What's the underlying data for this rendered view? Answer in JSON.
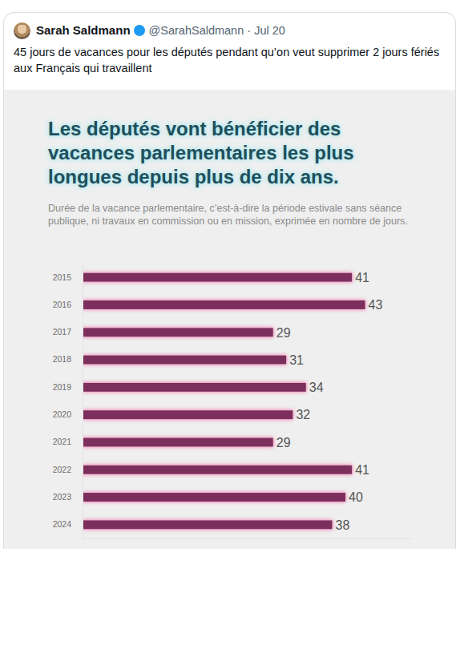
{
  "tweet": {
    "author": "Sarah Saldmann",
    "handle": "@SarahSaldmann · Jul 20",
    "text": "45 jours de vacances pour les députés pendant qu’on veut supprimer 2 jours fériés aux Français qui travaillent"
  },
  "chart_data": {
    "type": "bar",
    "orientation": "horizontal",
    "title": "Les députés vont bénéficier des vacances parlementaires les plus longues depuis plus de dix ans.",
    "subtitle": "Durée de la vacance parlementaire, c’est-à-dire la période estivale sans séance publique, ni travaux en commission ou en mission, exprimée en nombre de jours.",
    "categories": [
      "2015",
      "2016",
      "2017",
      "2018",
      "2019",
      "2020",
      "2021",
      "2022",
      "2023",
      "2024"
    ],
    "values": [
      41,
      43,
      29,
      31,
      34,
      32,
      29,
      41,
      40,
      38
    ],
    "color": "#7b2d5b",
    "xlim": [
      0,
      50
    ],
    "data_labels": true,
    "tick_labels": "y",
    "grid": false
  }
}
